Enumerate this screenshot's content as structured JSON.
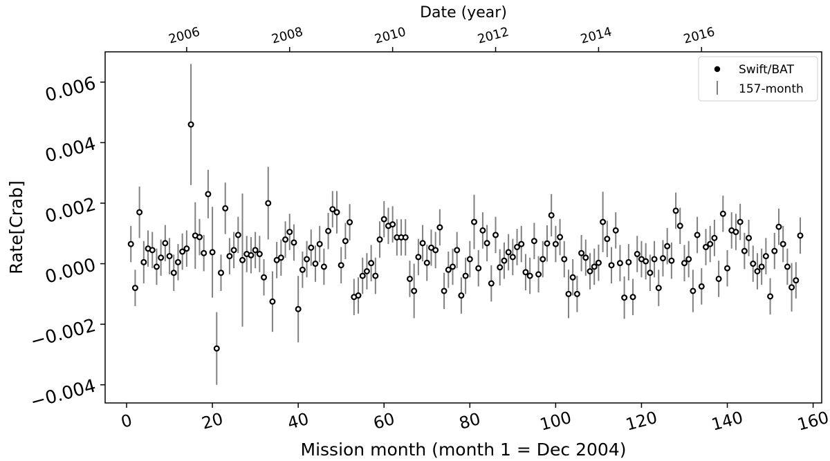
{
  "chart_data": {
    "type": "scatter",
    "xlabel": "Mission month (month 1 = Dec 2004)",
    "ylabel": "Rate[Crab]",
    "top_xlabel": "Date (year)",
    "xlim": [
      -5,
      162
    ],
    "ylim": [
      -0.0046,
      0.007
    ],
    "x_ticks": [
      0,
      20,
      40,
      60,
      80,
      100,
      120,
      140,
      160
    ],
    "y_ticks": [
      -0.004,
      -0.002,
      0.0,
      0.002,
      0.004,
      0.006
    ],
    "y_tick_labels": [
      "−0.004",
      "−0.002",
      "0.000",
      "0.002",
      "0.004",
      "0.006"
    ],
    "top_ticks": [
      {
        "month": 14,
        "label": "2006"
      },
      {
        "month": 38,
        "label": "2008"
      },
      {
        "month": 62,
        "label": "2010"
      },
      {
        "month": 86,
        "label": "2012"
      },
      {
        "month": 110,
        "label": "2014"
      },
      {
        "month": 134,
        "label": "2016"
      }
    ],
    "grid": false,
    "legend_position": "top-right",
    "legend": [
      {
        "label": "Swift/BAT",
        "marker": "dot"
      },
      {
        "label": "157-month",
        "marker": "errorbar"
      }
    ],
    "colors": {
      "marker": "#000000",
      "errorbar": "#808080"
    },
    "series": [
      {
        "name": "Swift/BAT",
        "x": [
          1,
          2,
          3,
          4,
          5,
          6,
          7,
          8,
          9,
          10,
          11,
          12,
          13,
          14,
          15,
          16,
          17,
          18,
          19,
          20,
          21,
          22,
          23,
          24,
          25,
          26,
          27,
          28,
          29,
          30,
          31,
          32,
          33,
          34,
          35,
          36,
          37,
          38,
          39,
          40,
          41,
          42,
          43,
          44,
          45,
          46,
          47,
          48,
          49,
          50,
          51,
          52,
          53,
          54,
          55,
          56,
          57,
          58,
          59,
          60,
          61,
          62,
          63,
          64,
          65,
          66,
          67,
          68,
          69,
          70,
          71,
          72,
          73,
          74,
          75,
          76,
          77,
          78,
          79,
          80,
          81,
          82,
          83,
          84,
          85,
          86,
          87,
          88,
          89,
          90,
          91,
          92,
          93,
          94,
          95,
          96,
          97,
          98,
          99,
          100,
          101,
          102,
          103,
          104,
          105,
          106,
          107,
          108,
          109,
          110,
          111,
          112,
          113,
          114,
          115,
          116,
          117,
          118,
          119,
          120,
          121,
          122,
          123,
          124,
          125,
          126,
          127,
          128,
          129,
          130,
          131,
          132,
          133,
          134,
          135,
          136,
          137,
          138,
          139,
          140,
          141,
          142,
          143,
          144,
          145,
          146,
          147,
          148,
          149,
          150,
          151,
          152,
          153,
          154,
          155,
          156,
          157
        ],
        "y": [
          0.00065,
          -0.0008,
          0.0017,
          5e-05,
          0.0005,
          0.00045,
          -0.0001,
          0.0002,
          0.00068,
          0.00025,
          -0.0003,
          5e-05,
          0.0004,
          0.0005,
          0.0046,
          0.00093,
          0.00088,
          0.00035,
          0.0023,
          0.00038,
          -0.0028,
          -0.0003,
          0.00183,
          0.00025,
          0.00045,
          0.00095,
          0.00012,
          0.00032,
          0.00028,
          0.00045,
          0.00032,
          -0.00045,
          0.002,
          -0.00125,
          0.00012,
          0.0002,
          0.0008,
          0.00105,
          0.0007,
          -0.0015,
          -0.0002,
          0.00015,
          0.00053,
          0.0,
          0.00065,
          -0.0001,
          0.00108,
          0.0018,
          0.0017,
          -5e-05,
          0.00075,
          0.00137,
          -0.0011,
          -0.00105,
          -0.0004,
          -0.00025,
          2e-05,
          -0.0004,
          0.0008,
          0.00147,
          0.00125,
          0.0013,
          0.00087,
          0.00087,
          0.00087,
          -0.0005,
          -0.0009,
          0.00022,
          0.00068,
          3e-05,
          0.00053,
          0.00045,
          0.0012,
          -0.0009,
          -0.0002,
          -0.0001,
          0.00045,
          -0.00105,
          -0.0004,
          0.00015,
          0.00138,
          -0.00015,
          0.0011,
          0.00068,
          -0.00065,
          0.00095,
          -0.00012,
          0.0001,
          0.00038,
          0.00022,
          0.00055,
          0.00065,
          -0.00028,
          -0.0004,
          0.00075,
          -0.00035,
          0.00015,
          0.00067,
          0.0016,
          0.00065,
          0.00088,
          0.00015,
          -0.001,
          -0.00045,
          -0.001,
          0.00035,
          0.0002,
          -0.00025,
          -0.0001,
          3e-05,
          0.00138,
          0.00082,
          -5e-05,
          0.0011,
          2e-05,
          -0.00112,
          5e-05,
          -0.0011,
          0.00032,
          0.00015,
          8e-05,
          -0.0003,
          0.00015,
          -0.0008,
          0.00018,
          0.00058,
          0.0001,
          0.00175,
          0.00125,
          2e-05,
          0.00015,
          -0.0009,
          0.00095,
          -0.00075,
          0.00055,
          0.00065,
          0.00085,
          -0.0005,
          0.00165,
          -0.00015,
          0.0011,
          0.00105,
          0.00138,
          0.00042,
          0.00085,
          0.0,
          -0.00025,
          -0.0001,
          0.00025,
          -0.00108,
          0.00042,
          0.00122,
          0.00065,
          -0.0001,
          -0.00078,
          -0.00055,
          0.00093
        ],
        "yerr": [
          0.0006,
          0.0006,
          0.00085,
          0.0007,
          0.0006,
          0.0006,
          0.0006,
          0.0006,
          0.0006,
          0.0006,
          0.0006,
          0.0006,
          0.0006,
          0.0006,
          0.002,
          0.0011,
          0.0006,
          0.0006,
          0.0008,
          0.0015,
          0.0012,
          0.0006,
          0.00085,
          0.0006,
          0.0006,
          0.0006,
          0.0022,
          0.0006,
          0.0006,
          0.0006,
          0.0006,
          0.0006,
          0.0012,
          0.001,
          0.0006,
          0.0006,
          0.0006,
          0.0006,
          0.0006,
          0.0011,
          0.0006,
          0.0006,
          0.0006,
          0.0006,
          0.0006,
          0.0006,
          0.0006,
          0.0006,
          0.0007,
          0.0006,
          0.0006,
          0.0006,
          0.0006,
          0.0006,
          0.0006,
          0.0006,
          0.0006,
          0.0006,
          0.0006,
          0.0006,
          0.0006,
          0.0006,
          0.0006,
          0.0006,
          0.0006,
          0.0006,
          0.0009,
          0.0006,
          0.0006,
          0.0006,
          0.0006,
          0.0006,
          0.0006,
          0.0006,
          0.0006,
          0.0006,
          0.0006,
          0.0006,
          0.0006,
          0.0006,
          0.0009,
          0.0006,
          0.0006,
          0.0006,
          0.0006,
          0.0006,
          0.0006,
          0.0006,
          0.0006,
          0.0006,
          0.0006,
          0.0006,
          0.0006,
          0.0006,
          0.0006,
          0.0006,
          0.0006,
          0.0006,
          0.0007,
          0.0006,
          0.0006,
          0.0006,
          0.0008,
          0.0006,
          0.0006,
          0.0006,
          0.0006,
          0.0006,
          0.0006,
          0.0006,
          0.001,
          0.0006,
          0.0006,
          0.0006,
          0.0006,
          0.0007,
          0.0006,
          0.0006,
          0.0006,
          0.0006,
          0.0006,
          0.0006,
          0.0006,
          0.0006,
          0.0006,
          0.0006,
          0.0006,
          0.0006,
          0.0006,
          0.0006,
          0.0006,
          0.0007,
          0.0006,
          0.0006,
          0.0006,
          0.0006,
          0.0006,
          0.0006,
          0.0006,
          0.0006,
          0.0006,
          0.0006,
          0.0006,
          0.0006,
          0.0006,
          0.0006,
          0.0006,
          0.0006,
          0.0006,
          0.0006,
          0.0006,
          0.0006,
          0.0006,
          0.0006,
          0.0008,
          0.0006,
          0.0006
        ]
      }
    ]
  }
}
